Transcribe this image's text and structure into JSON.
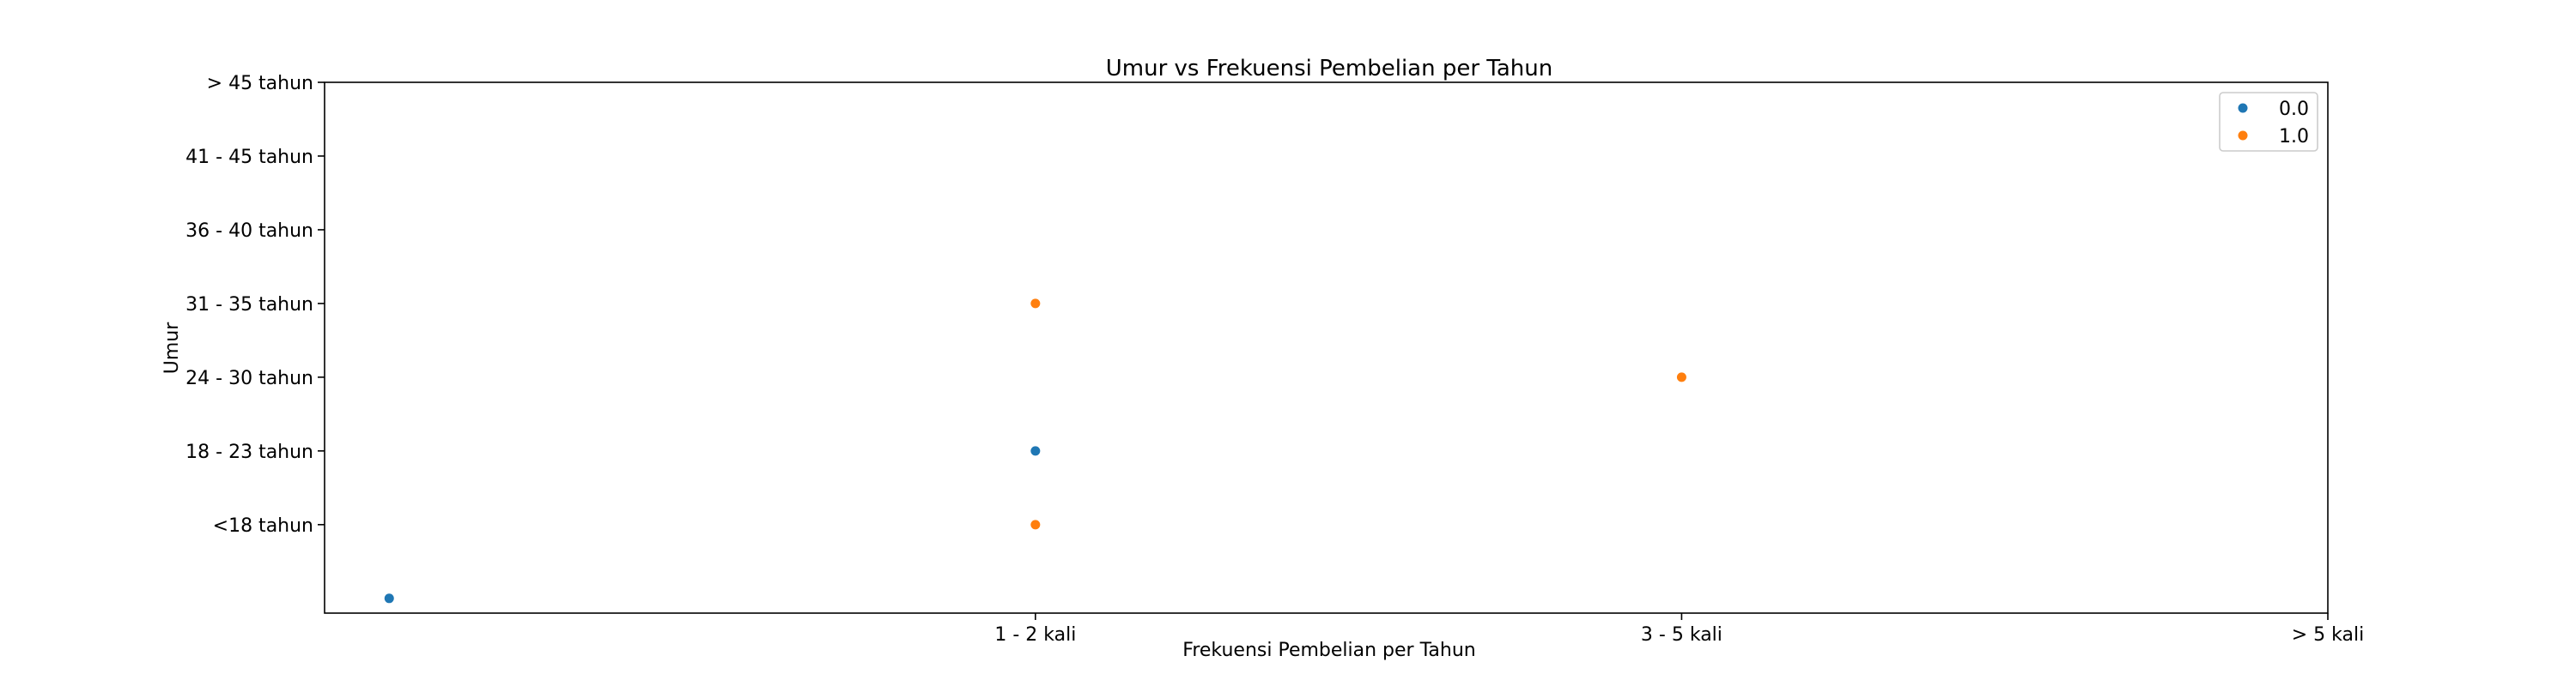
{
  "chart_data": {
    "type": "scatter",
    "title": "Umur vs Frekuensi Pembelian per Tahun",
    "xlabel": "Frekuensi Pembelian per Tahun",
    "ylabel": "Umur",
    "x_categories": [
      "",
      "1 - 2 kali",
      "3 - 5 kali",
      "> 5 kali"
    ],
    "y_categories": [
      "",
      "<18 tahun",
      "18 - 23 tahun",
      "24 - 30 tahun",
      "31 - 35 tahun",
      "36 - 40 tahun",
      "41 - 45 tahun",
      "> 45 tahun"
    ],
    "x_tick_labels": [
      "1 - 2 kali",
      "3 - 5 kali",
      "> 5 kali"
    ],
    "y_tick_labels": [
      "<18 tahun",
      "18 - 23 tahun",
      "24 - 30 tahun",
      "31 - 35 tahun",
      "36 - 40 tahun",
      "41 - 45 tahun",
      "> 45 tahun"
    ],
    "xlim": [
      -0.1,
      3
    ],
    "ylim": [
      -0.2,
      7
    ],
    "grid": false,
    "legend_position": "top-right",
    "series": [
      {
        "name": "0.0",
        "color": "#1f77b4",
        "points": [
          {
            "x": 0,
            "y": 0
          },
          {
            "x": 1,
            "y": 2
          }
        ]
      },
      {
        "name": "1.0",
        "color": "#ff7f0e",
        "points": [
          {
            "x": 1,
            "y": 1
          },
          {
            "x": 1,
            "y": 4
          },
          {
            "x": 2,
            "y": 3
          }
        ]
      }
    ]
  }
}
